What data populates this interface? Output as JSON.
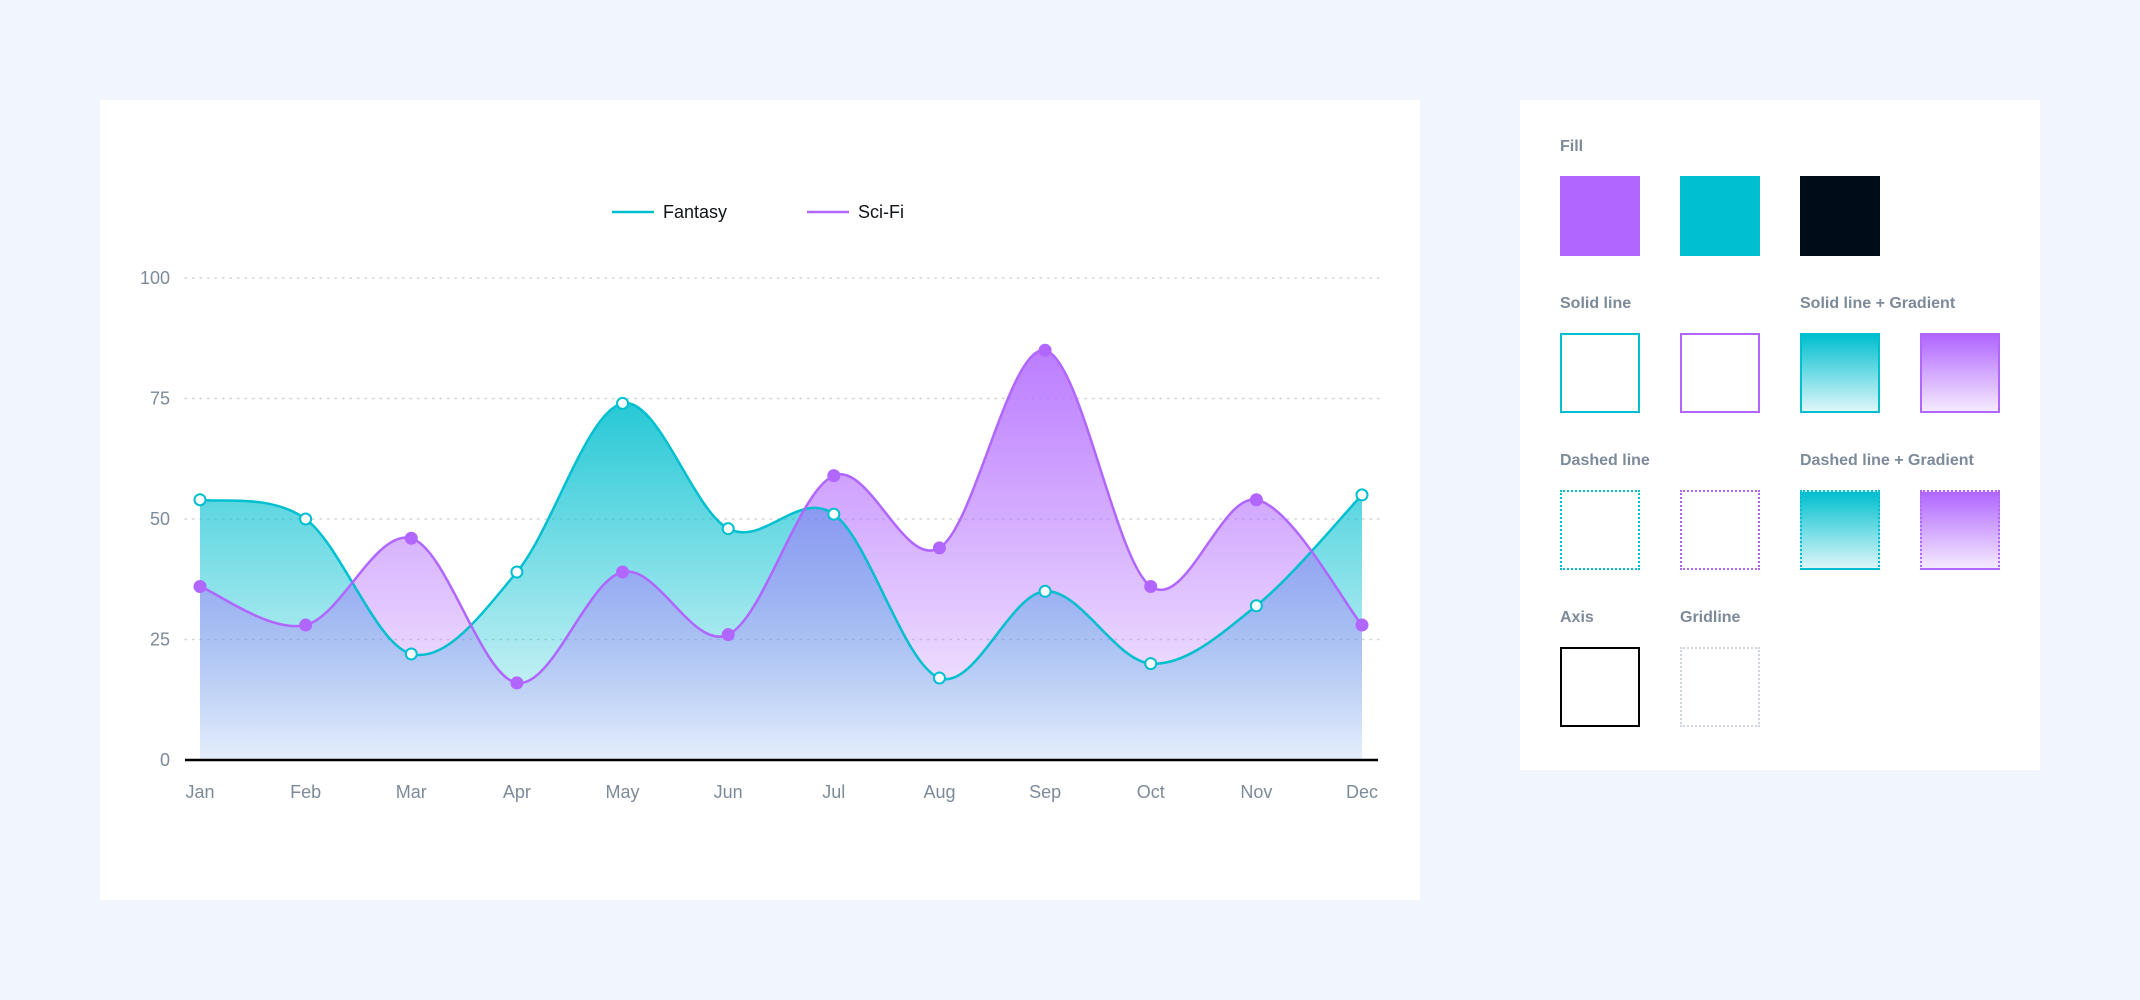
{
  "colors": {
    "fantasy": "#00bfcf",
    "scifi": "#b066ff",
    "dark": "#000d19",
    "axis": "#000000",
    "grid": "#cfd6de",
    "tick": "#7d8a99"
  },
  "chart_data": {
    "type": "area",
    "categories": [
      "Jan",
      "Feb",
      "Mar",
      "Apr",
      "May",
      "Jun",
      "Jul",
      "Aug",
      "Sep",
      "Oct",
      "Nov",
      "Dec"
    ],
    "series": [
      {
        "name": "Fantasy",
        "values": [
          54,
          50,
          22,
          39,
          74,
          48,
          51,
          17,
          35,
          20,
          32,
          55
        ]
      },
      {
        "name": "Sci-Fi",
        "values": [
          36,
          28,
          46,
          16,
          39,
          26,
          59,
          44,
          85,
          36,
          54,
          28
        ]
      }
    ],
    "yticks": [
      "0",
      "25",
      "50",
      "75",
      "100"
    ],
    "ylim": [
      0,
      100
    ],
    "grid": true,
    "legend": "top-center"
  },
  "swatches": {
    "fill_label": "Fill",
    "solid_label": "Solid line",
    "solid_gradient_label": "Solid line + Gradient",
    "dashed_label": "Dashed line",
    "dashed_gradient_label": "Dashed line + Gradient",
    "axis_label": "Axis",
    "gridline_label": "Gridline"
  }
}
